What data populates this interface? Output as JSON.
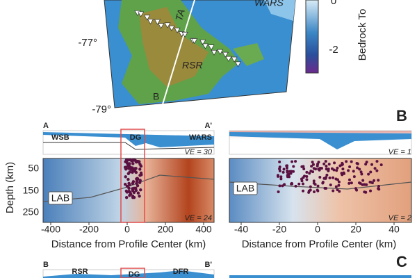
{
  "map": {
    "labels": {
      "ta": "TA",
      "wars": "WARS",
      "rsr": "RSR",
      "b": "B"
    },
    "latitudes": [
      "-77°",
      "-79°"
    ],
    "colorbar": {
      "ticks": [
        "0",
        "-2"
      ],
      "label": "Bedrock To"
    }
  },
  "panel_b": {
    "label": "B",
    "left": {
      "start": "A",
      "end": "A'",
      "regions": [
        "WSB",
        "DG",
        "WARS"
      ],
      "ve_top": "VE = 30",
      "ve_bottom": "VE = 24",
      "lab": "LAB",
      "y_title": "Depth (km)",
      "yticks": [
        "50",
        "150",
        "250"
      ],
      "xticks": [
        "-400",
        "-200",
        "0",
        "200",
        "400"
      ],
      "x_title": "Distance from Profile Center (km)"
    },
    "right": {
      "ve_top": "VE = 1",
      "ve_bottom": "VE = 2",
      "lab": "LAB",
      "xticks": [
        "-40",
        "-20",
        "0",
        "20",
        "40"
      ],
      "x_title": "Distance from Profile Center (km)"
    }
  },
  "panel_c": {
    "label": "C",
    "start": "B",
    "end": "B'",
    "regions": [
      "RSR",
      "DG",
      "DFR"
    ]
  }
}
